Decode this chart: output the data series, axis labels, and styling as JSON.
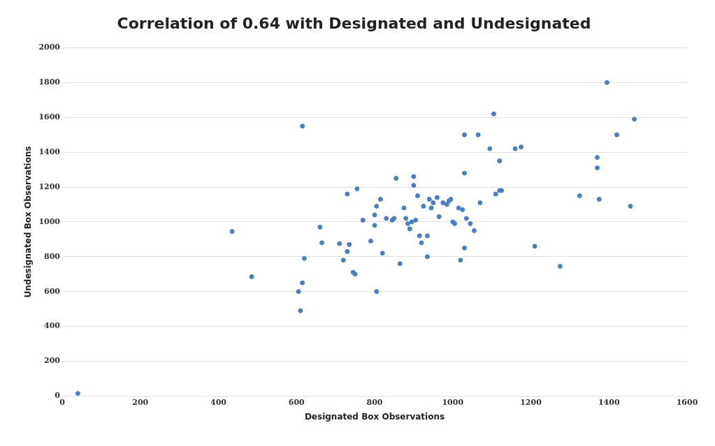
{
  "chart_data": {
    "type": "scatter",
    "title": "Correlation of 0.64 with Designated and Undesignated",
    "xlabel": "Designated Box Observations",
    "ylabel": "Undesignated Box Observations",
    "xlim": [
      0,
      1600
    ],
    "xticks": [
      0,
      200,
      400,
      600,
      800,
      1000,
      1200,
      1400,
      1600
    ],
    "ylim": [
      0,
      2000
    ],
    "yticks": [
      0,
      200,
      400,
      600,
      800,
      1000,
      1200,
      1400,
      1600,
      1800,
      2000
    ],
    "grid": "y",
    "marker": "circle",
    "legend": false,
    "series": [
      {
        "color": "#4a7ebf",
        "x": [
          40,
          435,
          485,
          605,
          610,
          615,
          615,
          620,
          660,
          665,
          710,
          720,
          730,
          730,
          735,
          745,
          750,
          755,
          770,
          790,
          800,
          800,
          805,
          805,
          815,
          820,
          830,
          845,
          850,
          855,
          865,
          875,
          880,
          885,
          890,
          895,
          900,
          900,
          905,
          910,
          915,
          920,
          925,
          935,
          935,
          940,
          945,
          950,
          960,
          965,
          975,
          985,
          990,
          995,
          1000,
          1005,
          1015,
          1020,
          1025,
          1030,
          1030,
          1030,
          1035,
          1045,
          1055,
          1065,
          1070,
          1095,
          1105,
          1110,
          1120,
          1120,
          1125,
          1160,
          1175,
          1210,
          1275,
          1325,
          1370,
          1370,
          1375,
          1395,
          1420,
          1455,
          1465
        ],
        "values": [
          15,
          945,
          685,
          600,
          490,
          1550,
          650,
          790,
          970,
          880,
          875,
          780,
          830,
          1160,
          870,
          710,
          700,
          1190,
          1010,
          890,
          1040,
          980,
          1090,
          600,
          1130,
          820,
          1020,
          1010,
          1020,
          1250,
          760,
          1080,
          1020,
          990,
          960,
          1000,
          1260,
          1210,
          1010,
          1150,
          920,
          880,
          1090,
          800,
          920,
          1130,
          1080,
          1110,
          1140,
          1030,
          1110,
          1100,
          1120,
          1130,
          1000,
          990,
          1080,
          780,
          1070,
          1280,
          1500,
          850,
          1020,
          990,
          950,
          1500,
          1110,
          1420,
          1620,
          1160,
          1180,
          1350,
          1180,
          1420,
          1430,
          860,
          745,
          1150,
          1370,
          1310,
          1130,
          1800,
          1500,
          1090,
          1590
        ]
      }
    ]
  }
}
